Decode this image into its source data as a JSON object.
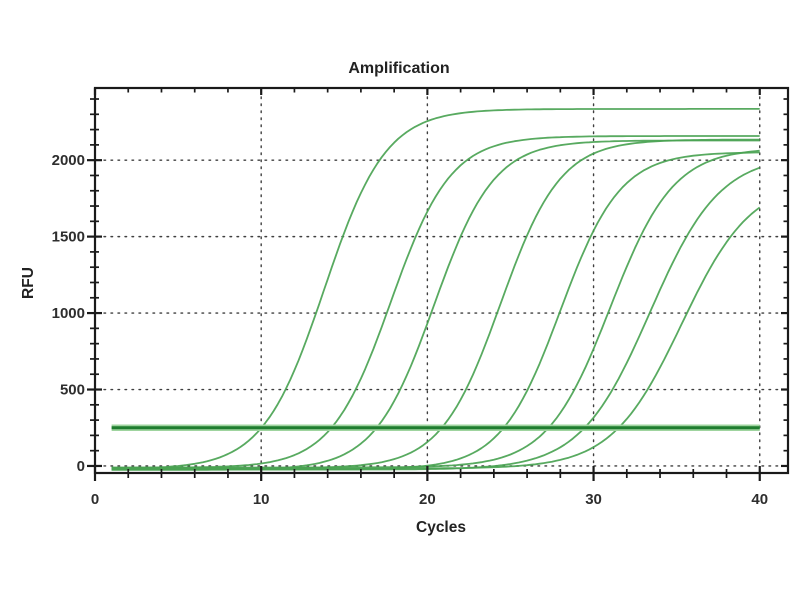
{
  "chart_data": {
    "type": "line",
    "title": "Amplification",
    "xlabel": "Cycles",
    "ylabel": "RFU",
    "xlim": [
      0,
      41.7
    ],
    "ylim": [
      -46,
      2472
    ],
    "x_ticks": [
      0,
      10,
      20,
      30,
      40
    ],
    "x_tick_labels": [
      "0",
      "10",
      "20",
      "30",
      "40"
    ],
    "x_minor_step": 2,
    "y_ticks": [
      0,
      500,
      1000,
      1500,
      2000
    ],
    "y_tick_labels": [
      "0",
      "500",
      "1000",
      "1500",
      "2000"
    ],
    "y_minor_step": 100,
    "grid": "dotted",
    "grid_color": "#3f3f3f",
    "frame_color": "#1a1a1a",
    "curve_color": "#4aa352",
    "legend": null,
    "threshold": {
      "rfu": 250,
      "x_start": 1,
      "x_end": 40,
      "core_color": "#1f7d2f",
      "edge_color": "#9fd49f"
    },
    "series": [
      {
        "name": "curve-1",
        "model": "sigmoid",
        "threshold_crossing_cycle": 10.0,
        "midpoint_cycle": 13.8,
        "slope_k": 1.85,
        "plateau_rfu": 2355,
        "baseline_rfu": -20,
        "x_start": 1,
        "x_end": 40
      },
      {
        "name": "curve-2",
        "model": "sigmoid",
        "threshold_crossing_cycle": 14.0,
        "midpoint_cycle": 17.8,
        "slope_k": 1.8,
        "plateau_rfu": 2170,
        "baseline_rfu": -12,
        "x_start": 1,
        "x_end": 40
      },
      {
        "name": "curve-3",
        "model": "sigmoid",
        "threshold_crossing_cycle": 16.5,
        "midpoint_cycle": 20.4,
        "slope_k": 1.8,
        "plateau_rfu": 2155,
        "baseline_rfu": -26,
        "x_start": 1,
        "x_end": 40
      },
      {
        "name": "curve-4",
        "model": "sigmoid",
        "threshold_crossing_cycle": 20.6,
        "midpoint_cycle": 24.4,
        "slope_k": 1.8,
        "plateau_rfu": 2150,
        "baseline_rfu": -15,
        "x_start": 1,
        "x_end": 40
      },
      {
        "name": "curve-5",
        "model": "sigmoid",
        "threshold_crossing_cycle": 24.2,
        "midpoint_cycle": 28.0,
        "slope_k": 1.8,
        "plateau_rfu": 2075,
        "baseline_rfu": -22,
        "x_start": 1,
        "x_end": 40
      },
      {
        "name": "curve-6",
        "model": "sigmoid",
        "threshold_crossing_cycle": 27.2,
        "midpoint_cycle": 31.0,
        "slope_k": 1.9,
        "plateau_rfu": 2090,
        "baseline_rfu": -10,
        "x_start": 1,
        "x_end": 40
      },
      {
        "name": "curve-7",
        "model": "sigmoid",
        "threshold_crossing_cycle": 29.1,
        "midpoint_cycle": 33.4,
        "slope_k": 2.1,
        "plateau_rfu": 2060,
        "baseline_rfu": -24,
        "x_start": 1,
        "x_end": 40
      },
      {
        "name": "curve-8",
        "model": "sigmoid",
        "threshold_crossing_cycle": 31.2,
        "midpoint_cycle": 35.3,
        "slope_k": 2.1,
        "plateau_rfu": 1890,
        "baseline_rfu": -17,
        "x_start": 1,
        "x_end": 40
      }
    ]
  }
}
